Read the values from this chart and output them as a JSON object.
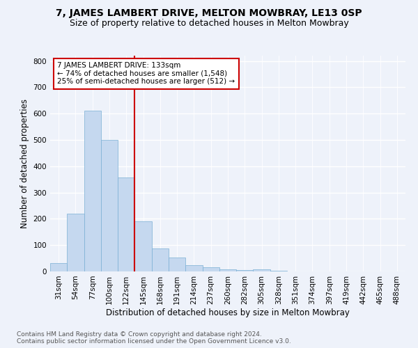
{
  "title": "7, JAMES LAMBERT DRIVE, MELTON MOWBRAY, LE13 0SP",
  "subtitle": "Size of property relative to detached houses in Melton Mowbray",
  "xlabel": "Distribution of detached houses by size in Melton Mowbray",
  "ylabel": "Number of detached properties",
  "bar_values": [
    33,
    220,
    612,
    500,
    357,
    190,
    88,
    52,
    23,
    16,
    8,
    5,
    7,
    2,
    0,
    0,
    0,
    0,
    0,
    0,
    0
  ],
  "categories": [
    "31sqm",
    "54sqm",
    "77sqm",
    "100sqm",
    "122sqm",
    "145sqm",
    "168sqm",
    "191sqm",
    "214sqm",
    "237sqm",
    "260sqm",
    "282sqm",
    "305sqm",
    "328sqm",
    "351sqm",
    "374sqm",
    "397sqm",
    "419sqm",
    "442sqm",
    "465sqm",
    "488sqm"
  ],
  "bar_color": "#c5d8ef",
  "bar_edge_color": "#7aafd4",
  "vline_x": 4.5,
  "vline_color": "#cc0000",
  "annotation_text": "7 JAMES LAMBERT DRIVE: 133sqm\n← 74% of detached houses are smaller (1,548)\n25% of semi-detached houses are larger (512) →",
  "annotation_box_color": "#ffffff",
  "annotation_box_edge": "#cc0000",
  "ylim": [
    0,
    820
  ],
  "yticks": [
    0,
    100,
    200,
    300,
    400,
    500,
    600,
    700,
    800
  ],
  "footer_text": "Contains HM Land Registry data © Crown copyright and database right 2024.\nContains public sector information licensed under the Open Government Licence v3.0.",
  "background_color": "#eef2fa",
  "grid_color": "#ffffff",
  "title_fontsize": 10,
  "subtitle_fontsize": 9,
  "axis_label_fontsize": 8.5,
  "tick_fontsize": 7.5,
  "footer_fontsize": 6.5,
  "annotation_fontsize": 7.5
}
